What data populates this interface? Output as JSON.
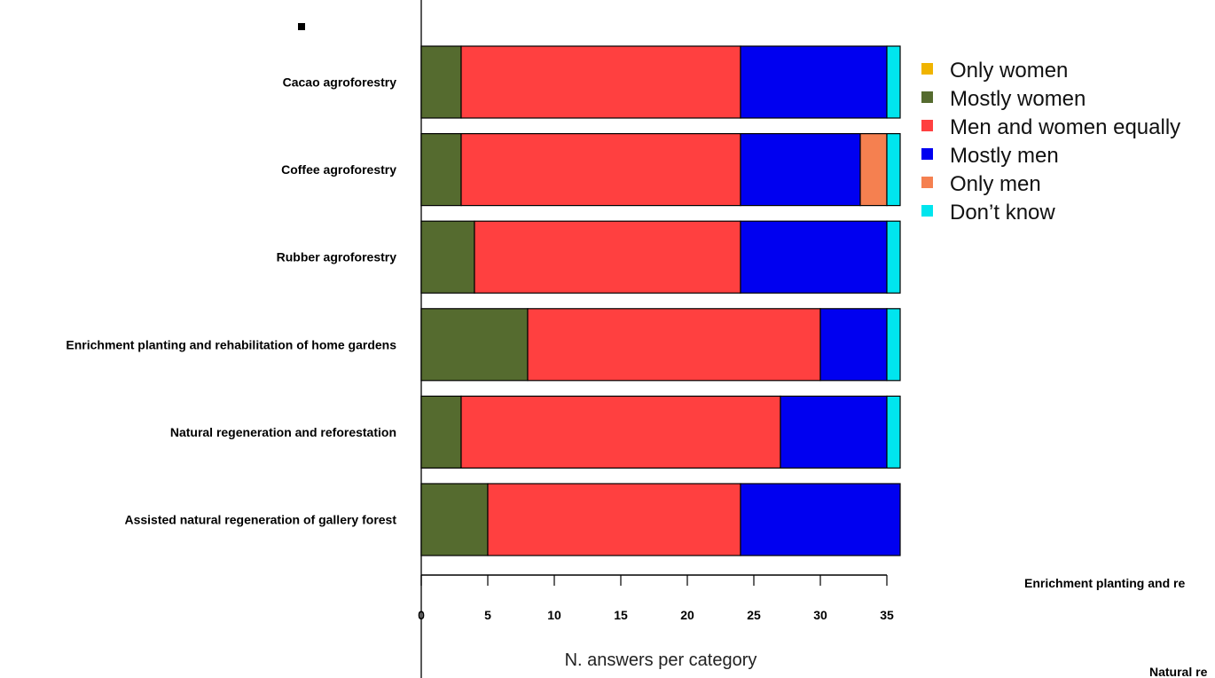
{
  "chart_data": {
    "type": "bar",
    "orientation": "horizontal",
    "stacked": true,
    "categories": [
      "Cacao agroforestry",
      "Coffee agroforestry",
      "Rubber agroforestry",
      "Enrichment planting and rehabilitation of home gardens",
      "Natural regeneration and reforestation",
      "Assisted natural regeneration of gallery forest"
    ],
    "series": [
      {
        "name": "Only women",
        "color": "#f0b400",
        "values": [
          0,
          0,
          0,
          0,
          0,
          0
        ]
      },
      {
        "name": "Mostly women",
        "color": "#556b2f",
        "values": [
          3,
          3,
          4,
          8,
          3,
          5
        ]
      },
      {
        "name": "Men and women equally",
        "color": "#ff4040",
        "values": [
          21,
          21,
          20,
          22,
          24,
          19
        ]
      },
      {
        "name": "Mostly men",
        "color": "#0000f0",
        "values": [
          11,
          9,
          11,
          5,
          8,
          12
        ]
      },
      {
        "name": "Only men",
        "color": "#f58050",
        "values": [
          0,
          2,
          0,
          0,
          0,
          0
        ]
      },
      {
        "name": "Don’t know",
        "color": "#00e5ee",
        "values": [
          1,
          1,
          1,
          1,
          1,
          0
        ]
      }
    ],
    "xlabel": "N. answers per category",
    "xlim": [
      0,
      36
    ],
    "xticks": [
      "0",
      "5",
      "10",
      "15",
      "20",
      "25",
      "30",
      "35"
    ],
    "legend_position": "right",
    "grid": false
  },
  "clipped_text": {
    "line1": "Enrichment planting and re",
    "line2": "Natural re"
  }
}
